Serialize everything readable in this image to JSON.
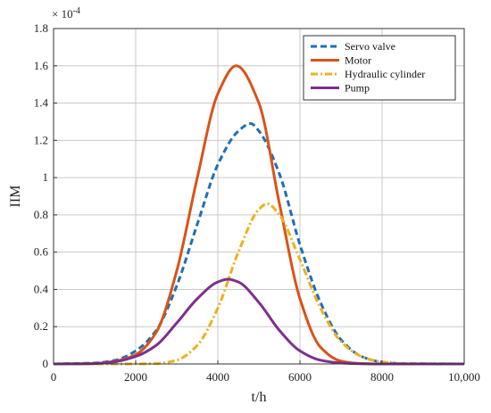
{
  "chart_data": {
    "type": "line",
    "title": "",
    "xlabel": "t/h",
    "ylabel": "IIM",
    "y_exponent_label": "× 10",
    "y_exponent_power": "-4",
    "xlim": [
      0,
      10000
    ],
    "ylim": [
      0,
      1.8
    ],
    "x_ticks": [
      0,
      2000,
      4000,
      6000,
      8000,
      10000
    ],
    "x_tick_labels": [
      "0",
      "2000",
      "4000",
      "6000",
      "8000",
      "10,000"
    ],
    "y_ticks": [
      0,
      0.2,
      0.4,
      0.6,
      0.8,
      1.0,
      1.2,
      1.4,
      1.6,
      1.8
    ],
    "y_tick_labels": [
      "0",
      "0.2",
      "0.4",
      "0.6",
      "0.8",
      "1",
      "1.2",
      "1.4",
      "1.6",
      "1.8"
    ],
    "grid": true,
    "legend_position": "top-right",
    "series": [
      {
        "name": "Servo valve",
        "color": "#1f6fb4",
        "style": "dashed",
        "x": [
          0,
          1000,
          1500,
          2000,
          2500,
          3000,
          3500,
          4000,
          4500,
          4800,
          5000,
          5500,
          6000,
          6500,
          7000,
          7500,
          8000,
          8500,
          10000
        ],
        "y": [
          0,
          0.005,
          0.02,
          0.07,
          0.18,
          0.42,
          0.75,
          1.07,
          1.25,
          1.29,
          1.25,
          1.02,
          0.64,
          0.33,
          0.13,
          0.04,
          0.01,
          0.002,
          0
        ]
      },
      {
        "name": "Motor",
        "color": "#d95319",
        "style": "solid",
        "x": [
          0,
          1000,
          1500,
          2000,
          2500,
          3000,
          3500,
          4000,
          4450,
          5000,
          5500,
          6000,
          6500,
          7000,
          7500,
          8000,
          10000
        ],
        "y": [
          0,
          0.002,
          0.015,
          0.05,
          0.17,
          0.5,
          1.0,
          1.45,
          1.6,
          1.4,
          0.86,
          0.35,
          0.09,
          0.015,
          0.002,
          0,
          0
        ]
      },
      {
        "name": "Hydraulic cylinder",
        "color": "#edb120",
        "style": "dashdot",
        "x": [
          0,
          2000,
          2500,
          3000,
          3500,
          4000,
          4500,
          5000,
          5200,
          5500,
          6000,
          6500,
          7000,
          7500,
          8000,
          8500,
          10000
        ],
        "y": [
          0,
          0,
          0.002,
          0.02,
          0.1,
          0.3,
          0.6,
          0.83,
          0.86,
          0.8,
          0.56,
          0.3,
          0.12,
          0.04,
          0.01,
          0.002,
          0
        ]
      },
      {
        "name": "Pump",
        "color": "#7e2f8e",
        "style": "solid",
        "x": [
          0,
          1000,
          1500,
          2000,
          2500,
          3000,
          3500,
          4000,
          4250,
          4500,
          5000,
          5500,
          6000,
          6500,
          7000,
          7500,
          8000,
          10000
        ],
        "y": [
          0,
          0.002,
          0.012,
          0.04,
          0.1,
          0.22,
          0.35,
          0.44,
          0.455,
          0.44,
          0.33,
          0.18,
          0.07,
          0.02,
          0.005,
          0.001,
          0,
          0
        ]
      }
    ]
  }
}
